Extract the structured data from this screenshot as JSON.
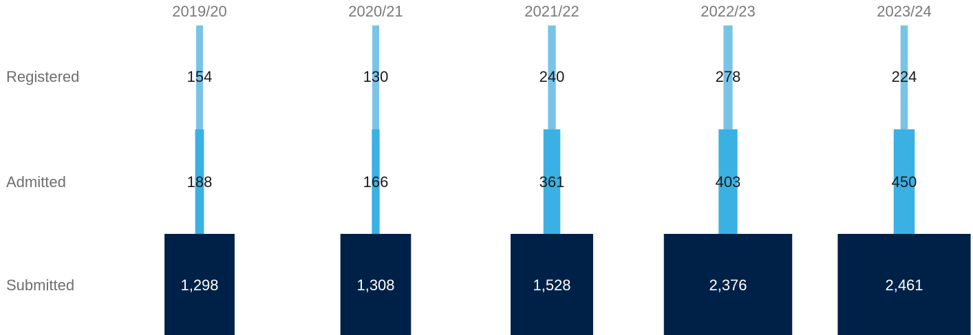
{
  "chart_data": {
    "type": "bar",
    "categories": [
      "2019/20",
      "2020/21",
      "2021/22",
      "2022/23",
      "2023/24"
    ],
    "series": [
      {
        "name": "Registered",
        "values": [
          154,
          130,
          240,
          278,
          224
        ],
        "display": [
          "154",
          "130",
          "240",
          "278",
          "224"
        ],
        "color": "#79c4e6"
      },
      {
        "name": "Admitted",
        "values": [
          188,
          166,
          361,
          403,
          450
        ],
        "display": [
          "188",
          "166",
          "361",
          "403",
          "450"
        ],
        "color": "#3bb1e3"
      },
      {
        "name": "Submitted",
        "values": [
          1298,
          1308,
          1528,
          2376,
          2461
        ],
        "display": [
          "1,298",
          "1,308",
          "1,528",
          "2,376",
          "2,461"
        ],
        "color": "#002147"
      }
    ]
  }
}
